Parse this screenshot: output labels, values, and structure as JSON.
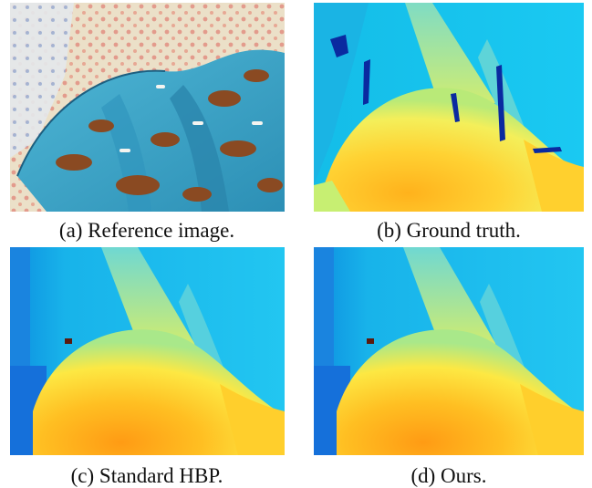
{
  "figure": {
    "panels": [
      {
        "id": "a",
        "caption": "(a) Reference image."
      },
      {
        "id": "b",
        "caption": "(b) Ground truth."
      },
      {
        "id": "c",
        "caption": "(c) Standard HBP."
      },
      {
        "id": "d",
        "caption": "(d) Ours."
      }
    ]
  },
  "colors": {
    "cloth_bg": "#e9ddc6",
    "blanket": "#3aa6c8",
    "depth_near": "#ffa11a",
    "depth_mid": "#fff06a",
    "depth_far": "#18c4f2",
    "depth_bg": "#0a2aa0"
  }
}
